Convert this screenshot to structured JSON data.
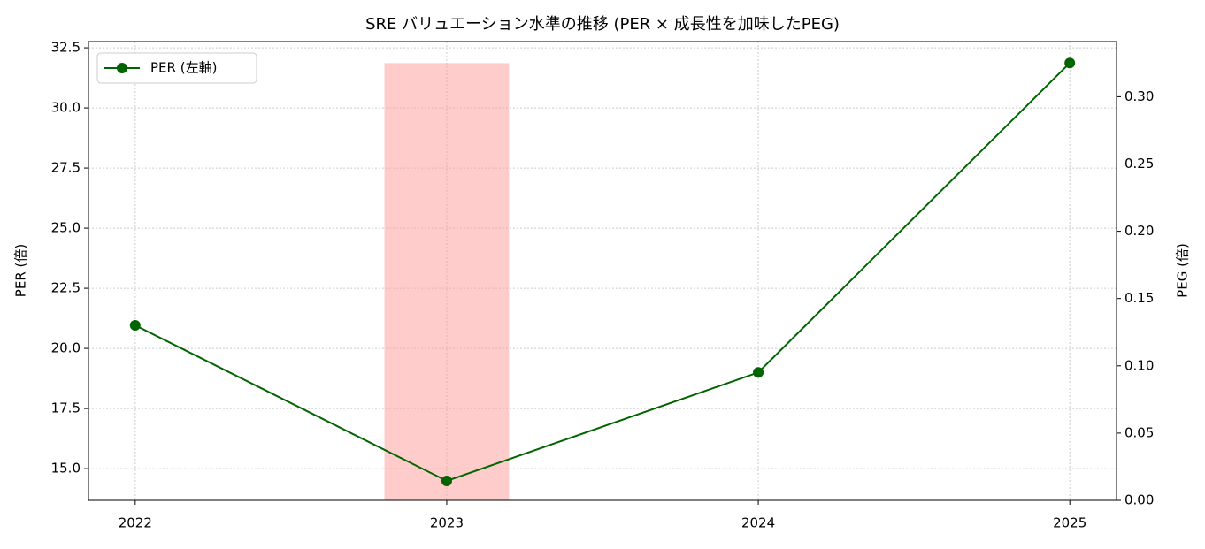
{
  "chart_data": {
    "type": "line",
    "title": "SRE バリュエーション水準の推移 (PER × 成長性を加味したPEG)",
    "categories": [
      "2022",
      "2023",
      "2024",
      "2025"
    ],
    "series": [
      {
        "name": "PER (左軸)",
        "type": "line",
        "color": "#006400",
        "values": [
          20.96,
          14.49,
          19.0,
          31.87
        ]
      },
      {
        "type": "bar",
        "axis": "y2",
        "color": "#ff9999",
        "values": [
          null,
          0.325,
          null,
          null
        ]
      }
    ],
    "ylabel": "PER (倍)",
    "y2label": "PEG (倍)",
    "ylim": [
      13.68,
      32.76
    ],
    "yticks": [
      {
        "value": 15,
        "label": "15.0"
      },
      {
        "value": 17.5,
        "label": "17.5"
      },
      {
        "value": 20,
        "label": "20.0"
      },
      {
        "value": 22.5,
        "label": "22.5"
      },
      {
        "value": 25,
        "label": "25.0"
      },
      {
        "value": 27.5,
        "label": "27.5"
      },
      {
        "value": 30,
        "label": "30.0"
      },
      {
        "value": 32.5,
        "label": "32.5"
      }
    ],
    "y2lim": [
      0,
      0.341
    ],
    "y2ticks": [
      {
        "value": 0,
        "label": "0.00"
      },
      {
        "value": 0.05,
        "label": "0.05"
      },
      {
        "value": 0.1,
        "label": "0.10"
      },
      {
        "value": 0.15,
        "label": "0.15"
      },
      {
        "value": 0.2,
        "label": "0.20"
      },
      {
        "value": 0.25,
        "label": "0.25"
      },
      {
        "value": 0.3,
        "label": "0.30"
      }
    ],
    "grid": true,
    "legend": "upper left"
  }
}
